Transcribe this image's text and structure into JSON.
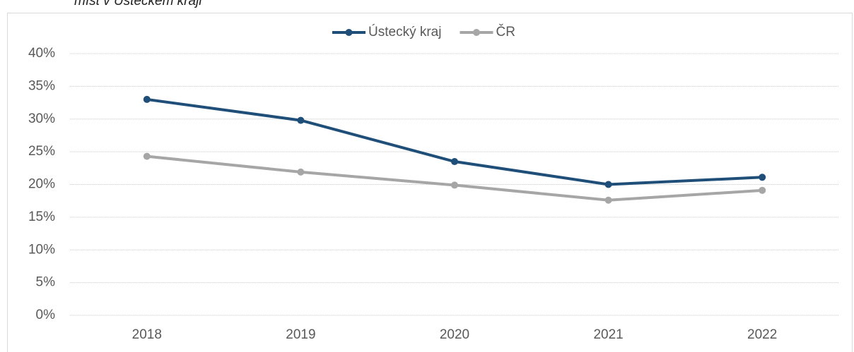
{
  "chart_data": {
    "type": "line",
    "title": "míst v Ústeckém kraji",
    "categories": [
      "2018",
      "2019",
      "2020",
      "2021",
      "2022"
    ],
    "series": [
      {
        "name": "Ústecký kraj",
        "color": "#1f4e79",
        "values": [
          33.0,
          29.8,
          23.5,
          20.0,
          21.1
        ]
      },
      {
        "name": "ČR",
        "color": "#a6a6a6",
        "values": [
          24.3,
          21.9,
          19.9,
          17.6,
          19.1
        ]
      }
    ],
    "ylim": [
      0,
      40
    ],
    "yticks": [
      {
        "value": 0,
        "label": "0%"
      },
      {
        "value": 5,
        "label": "5%"
      },
      {
        "value": 10,
        "label": "10%"
      },
      {
        "value": 15,
        "label": "15%"
      },
      {
        "value": 20,
        "label": "20%"
      },
      {
        "value": 25,
        "label": "25%"
      },
      {
        "value": 30,
        "label": "30%"
      },
      {
        "value": 35,
        "label": "35%"
      },
      {
        "value": 40,
        "label": "40%"
      }
    ],
    "grid": true,
    "legend": "top"
  }
}
